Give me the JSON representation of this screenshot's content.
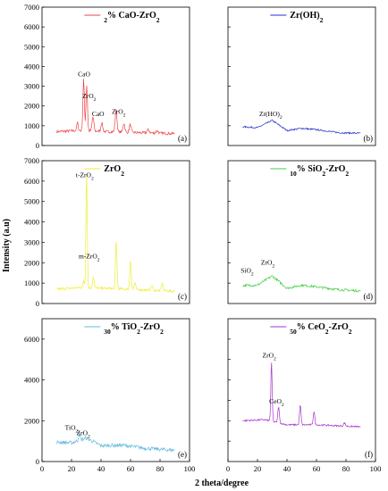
{
  "figure": {
    "ylabel": "Intensity (a.u)",
    "xlabel": "2 theta/degree"
  },
  "chart_data": [
    {
      "type": "line",
      "panel_label": "(a)",
      "legend": "2% CaO-ZrO2",
      "color": "#ee4444",
      "xlim": [
        0,
        100
      ],
      "ylim": [
        0,
        7000
      ],
      "yticks": [
        0,
        1000,
        2000,
        3000,
        4000,
        5000,
        6000,
        7000
      ],
      "show_yticks": true,
      "show_xticks": false,
      "baseline": [
        [
          10,
          700
        ],
        [
          25,
          760
        ],
        [
          45,
          700
        ],
        [
          65,
          650
        ],
        [
          90,
          600
        ]
      ],
      "noise": 70,
      "peaks": [
        [
          24,
          400,
          0.5
        ],
        [
          28.2,
          2600,
          0.5
        ],
        [
          30.3,
          2300,
          0.5
        ],
        [
          34.5,
          700,
          0.6
        ],
        [
          40.5,
          450,
          0.6
        ],
        [
          50.2,
          1100,
          0.6
        ],
        [
          55.5,
          450,
          0.6
        ],
        [
          59.8,
          400,
          0.6
        ],
        [
          72,
          150,
          0.8
        ],
        [
          78,
          120,
          0.8
        ]
      ],
      "annotations": [
        {
          "text": "CaO",
          "x": 28.5,
          "y": 3500
        },
        {
          "text": "ZrO2",
          "x": 32,
          "y": 2400
        },
        {
          "text": "CaO",
          "x": 38,
          "y": 1500
        },
        {
          "text": "ZrO2",
          "x": 52,
          "y": 1600
        }
      ]
    },
    {
      "type": "line",
      "panel_label": "(b)",
      "legend": "Zr(OH)2",
      "color": "#2233cc",
      "xlim": [
        0,
        100
      ],
      "ylim": [
        0,
        7000
      ],
      "show_yticks": false,
      "show_xticks": false,
      "baseline": [
        [
          10,
          950
        ],
        [
          20,
          900
        ],
        [
          30,
          1270
        ],
        [
          40,
          760
        ],
        [
          50,
          870
        ],
        [
          60,
          800
        ],
        [
          75,
          650
        ],
        [
          90,
          620
        ]
      ],
      "noise": 40,
      "peaks": [],
      "annotations": [
        {
          "text": "Zr(HO)2",
          "x": 29,
          "y": 1500
        }
      ]
    },
    {
      "type": "line",
      "panel_label": "(c)",
      "legend": "ZrO2",
      "color": "#eeee33",
      "xlim": [
        0,
        100
      ],
      "ylim": [
        0,
        7000
      ],
      "yticks": [
        0,
        1000,
        2000,
        3000,
        4000,
        5000,
        6000,
        7000
      ],
      "show_yticks": true,
      "show_xticks": false,
      "baseline": [
        [
          10,
          700
        ],
        [
          25,
          780
        ],
        [
          40,
          750
        ],
        [
          60,
          700
        ],
        [
          90,
          600
        ]
      ],
      "noise": 60,
      "peaks": [
        [
          28.2,
          300,
          0.5
        ],
        [
          30.2,
          5600,
          0.45
        ],
        [
          34.8,
          600,
          0.5
        ],
        [
          50.3,
          2300,
          0.5
        ],
        [
          60,
          1400,
          0.5
        ],
        [
          63,
          300,
          0.5
        ],
        [
          74.5,
          250,
          0.6
        ],
        [
          81.5,
          350,
          0.6
        ]
      ],
      "annotations": [
        {
          "text": "t-ZrO2",
          "x": 29,
          "y": 6200
        },
        {
          "text": "m-ZrO2",
          "x": 32,
          "y": 2200
        }
      ]
    },
    {
      "type": "line",
      "panel_label": "(d)",
      "legend": "10% SiO2-ZrO2",
      "color": "#44cc44",
      "xlim": [
        0,
        100
      ],
      "ylim": [
        0,
        7000
      ],
      "show_yticks": false,
      "show_xticks": false,
      "baseline": [
        [
          10,
          880
        ],
        [
          20,
          900
        ],
        [
          30,
          1350
        ],
        [
          40,
          750
        ],
        [
          50,
          900
        ],
        [
          60,
          820
        ],
        [
          75,
          680
        ],
        [
          90,
          620
        ]
      ],
      "noise": 60,
      "peaks": [],
      "annotations": [
        {
          "text": "SiO2",
          "x": 13,
          "y": 1500
        },
        {
          "text": "ZrO2",
          "x": 27,
          "y": 1900
        }
      ]
    },
    {
      "type": "line",
      "panel_label": "(e)",
      "legend": "30% TiO2-ZrO2",
      "color": "#66bbdd",
      "xlim": [
        0,
        100
      ],
      "ylim": [
        0,
        7000
      ],
      "yticks": [
        0,
        2000,
        4000,
        6000
      ],
      "show_yticks": true,
      "show_xticks": true,
      "xticks": [
        0,
        20,
        40,
        60,
        80,
        100
      ],
      "baseline": [
        [
          10,
          950
        ],
        [
          20,
          920
        ],
        [
          30,
          1150
        ],
        [
          40,
          780
        ],
        [
          55,
          800
        ],
        [
          70,
          650
        ],
        [
          90,
          550
        ]
      ],
      "noise": 90,
      "peaks": [
        [
          25.3,
          350,
          0.5
        ]
      ],
      "annotations": [
        {
          "text": "TiO2",
          "x": 20,
          "y": 1550
        },
        {
          "text": "ZrO2",
          "x": 28,
          "y": 1300
        }
      ]
    },
    {
      "type": "line",
      "panel_label": "(f)",
      "legend": "50% CeO2-ZrO2",
      "color": "#aa33cc",
      "xlim": [
        0,
        100
      ],
      "ylim": [
        0,
        7000
      ],
      "show_yticks": false,
      "show_xticks": true,
      "xticks": [
        0,
        20,
        40,
        60,
        80,
        100
      ],
      "baseline": [
        [
          10,
          2000
        ],
        [
          25,
          2050
        ],
        [
          40,
          1800
        ],
        [
          60,
          1800
        ],
        [
          90,
          1700
        ]
      ],
      "noise": 40,
      "peaks": [
        [
          29.5,
          2900,
          0.45
        ],
        [
          34.3,
          800,
          0.5
        ],
        [
          49,
          950,
          0.5
        ],
        [
          58.3,
          650,
          0.5
        ],
        [
          79,
          150,
          0.6
        ]
      ],
      "annotations": [
        {
          "text": "ZrO2",
          "x": 28,
          "y": 5100
        },
        {
          "text": "CeO2",
          "x": 33,
          "y": 2850
        }
      ]
    }
  ]
}
